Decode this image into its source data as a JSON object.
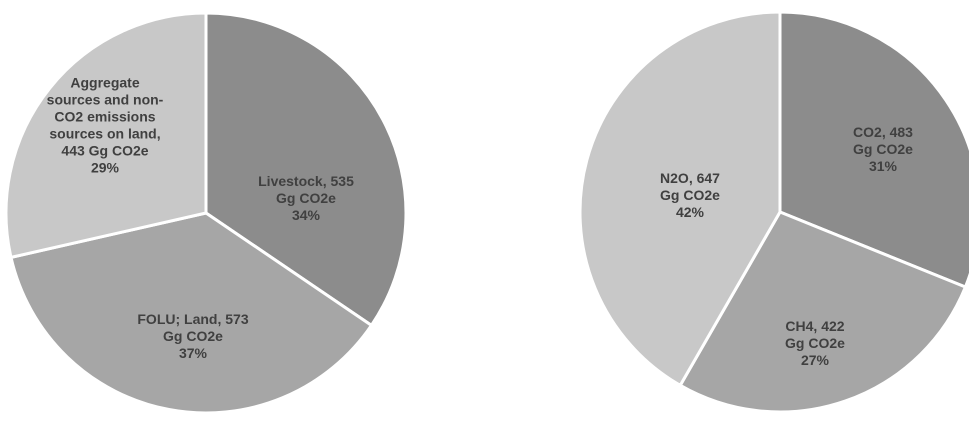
{
  "colors": {
    "slice_dark": "#8c8c8c",
    "slice_mid": "#a6a6a6",
    "slice_light": "#c8c8c8",
    "label_text": "#404040",
    "separator": "#ffffff"
  },
  "chart_data": [
    {
      "type": "pie",
      "title": "",
      "start_angle_deg": 0,
      "direction": "clockwise",
      "slices": [
        {
          "category": "Livestock",
          "value": 535,
          "unit": "Gg CO2e",
          "percent": "34%",
          "color": "#8c8c8c",
          "label_lines": [
            "Livestock, 535",
            "Gg CO2e",
            "34%"
          ]
        },
        {
          "category": "FOLU; Land",
          "value": 573,
          "unit": "Gg CO2e",
          "percent": "37%",
          "color": "#a6a6a6",
          "label_lines": [
            "FOLU; Land, 573",
            "Gg CO2e",
            "37%"
          ]
        },
        {
          "category": "Aggregate sources and non-CO2 emissions sources on land",
          "value": 443,
          "unit": "Gg CO2e",
          "percent": "29%",
          "color": "#c8c8c8",
          "label_lines": [
            "Aggregate",
            "sources and non-",
            "CO2 emissions",
            "sources on land,",
            "443 Gg CO2e",
            "29%"
          ]
        }
      ]
    },
    {
      "type": "pie",
      "title": "",
      "start_angle_deg": 0,
      "direction": "clockwise",
      "slices": [
        {
          "category": "CO2",
          "value": 483,
          "unit": "Gg CO2e",
          "percent": "31%",
          "color": "#8c8c8c",
          "label_lines": [
            "CO2,  483",
            "Gg CO2e",
            "31%"
          ]
        },
        {
          "category": "CH4",
          "value": 422,
          "unit": "Gg CO2e",
          "percent": "27%",
          "color": "#a6a6a6",
          "label_lines": [
            "CH4, 422",
            "Gg CO2e",
            "27%"
          ]
        },
        {
          "category": "N2O",
          "value": 647,
          "unit": "Gg CO2e",
          "percent": "42%",
          "color": "#c8c8c8",
          "label_lines": [
            "N2O, 647",
            "Gg CO2e",
            "42%"
          ]
        }
      ]
    }
  ]
}
